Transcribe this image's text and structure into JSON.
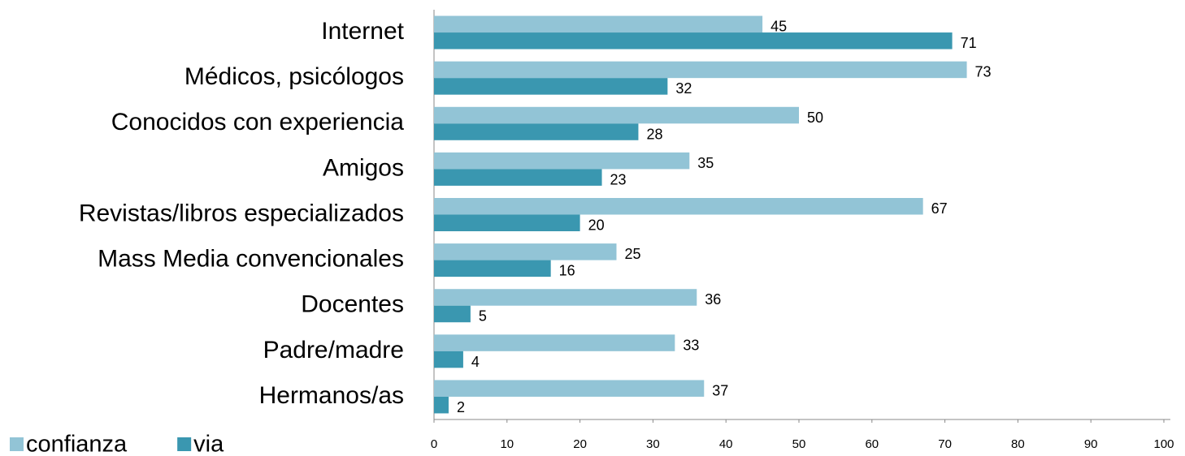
{
  "chart_data": {
    "type": "bar",
    "orientation": "horizontal",
    "categories": [
      "Internet",
      "Médicos, psicólogos",
      "Conocidos con experiencia",
      "Amigos",
      "Revistas/libros especializados",
      "Mass Media convencionales",
      "Docentes",
      "Padre/madre",
      "Hermanos/as"
    ],
    "series": [
      {
        "name": "confianza",
        "color": "#92c4d6",
        "values": [
          45,
          73,
          50,
          35,
          67,
          25,
          36,
          33,
          37
        ]
      },
      {
        "name": "via",
        "color": "#3a97b0",
        "values": [
          71,
          32,
          28,
          23,
          20,
          16,
          5,
          4,
          2
        ]
      }
    ],
    "xlim": [
      0,
      100
    ],
    "xticks": [
      0,
      10,
      20,
      30,
      40,
      50,
      60,
      70,
      80,
      90,
      100
    ],
    "grid": false,
    "legend": "bottom-left"
  }
}
